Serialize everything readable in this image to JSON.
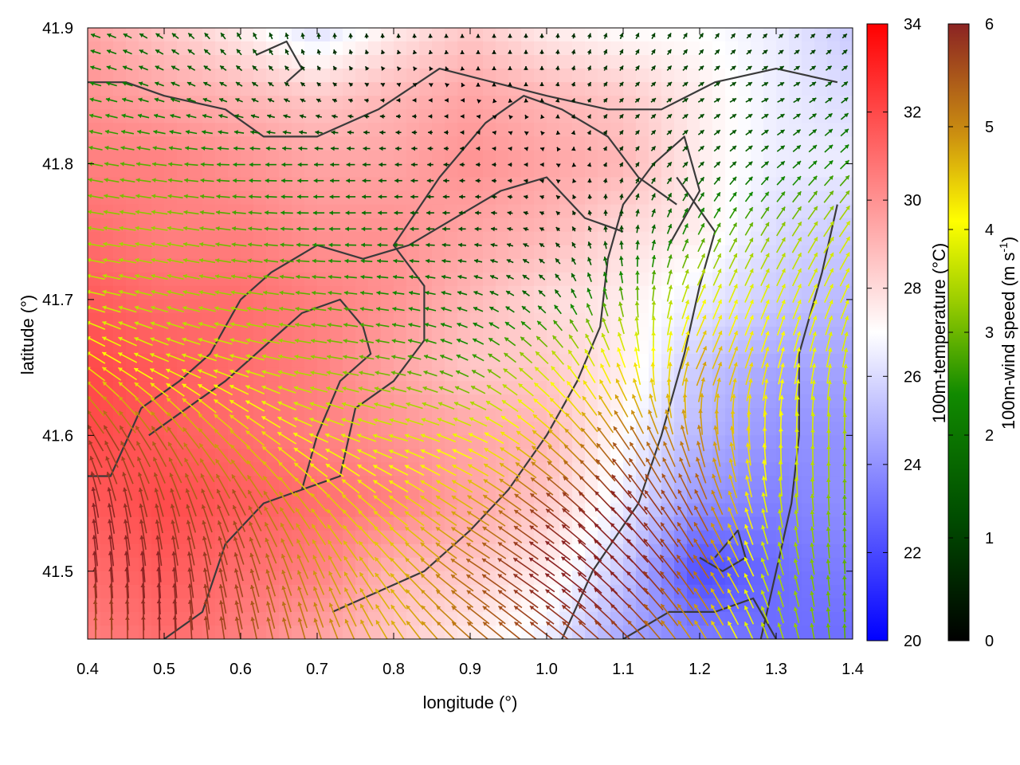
{
  "chart_data": {
    "type": "heatmap",
    "xlabel": "longitude (°)",
    "ylabel": "latitude (°)",
    "xlim": [
      0.4,
      1.4
    ],
    "ylim": [
      41.45,
      41.9
    ],
    "xticks": [
      "0.4",
      "0.5",
      "0.6",
      "0.7",
      "0.8",
      "0.9",
      "1.0",
      "1.1",
      "1.2",
      "1.3",
      "1.4"
    ],
    "yticks": [
      "41.5",
      "41.6",
      "41.7",
      "41.8",
      "41.9"
    ],
    "xtick_values": [
      0.4,
      0.5,
      0.6,
      0.7,
      0.8,
      0.9,
      1.0,
      1.1,
      1.2,
      1.3,
      1.4
    ],
    "ytick_values": [
      41.5,
      41.6,
      41.7,
      41.8,
      41.9
    ],
    "temperature_colorbar": {
      "label": "100m-temperature (°C)",
      "range": [
        20,
        34
      ],
      "ticks": [
        "20",
        "22",
        "24",
        "26",
        "28",
        "30",
        "32",
        "34"
      ],
      "tick_values": [
        20,
        22,
        24,
        26,
        28,
        30,
        32,
        34
      ],
      "colors": [
        "#0000ff",
        "#ffffff",
        "#ff0000"
      ]
    },
    "wind_colorbar": {
      "label": "100m-wind speed (m s",
      "label_sup": "-1",
      "label_end": ")",
      "range": [
        0,
        6
      ],
      "ticks": [
        "0",
        "1",
        "2",
        "3",
        "4",
        "5",
        "6"
      ],
      "tick_values": [
        0,
        1,
        2,
        3,
        4,
        5,
        6
      ],
      "colors": [
        "#000000",
        "#006400",
        "#7fbf00",
        "#ffff00",
        "#c8900a",
        "#8b2323"
      ]
    },
    "temperature_field": {
      "lon": [
        0.4,
        0.5,
        0.6,
        0.7,
        0.8,
        0.9,
        1.0,
        1.1,
        1.2,
        1.3,
        1.4
      ],
      "lat": [
        41.9,
        41.85,
        41.8,
        41.75,
        41.7,
        41.65,
        41.6,
        41.55,
        41.5,
        41.45
      ],
      "values": [
        [
          29.5,
          28.5,
          27.5,
          26.0,
          27.5,
          28.5,
          27.5,
          27.0,
          27.0,
          26.5,
          25.5
        ],
        [
          30.0,
          29.5,
          29.0,
          28.5,
          29.0,
          29.5,
          29.0,
          28.5,
          27.5,
          26.5,
          26.0
        ],
        [
          30.5,
          30.5,
          30.0,
          29.5,
          29.5,
          30.0,
          29.5,
          29.0,
          27.5,
          26.5,
          26.5
        ],
        [
          31.0,
          30.5,
          30.5,
          30.0,
          30.0,
          29.5,
          29.0,
          28.0,
          27.5,
          26.0,
          25.5
        ],
        [
          31.5,
          31.0,
          31.0,
          30.5,
          30.0,
          29.0,
          28.0,
          27.5,
          26.5,
          25.5,
          25.0
        ],
        [
          32.0,
          31.5,
          31.0,
          30.5,
          29.5,
          28.5,
          28.5,
          27.5,
          25.5,
          24.5,
          24.5
        ],
        [
          32.0,
          31.5,
          31.0,
          30.5,
          30.0,
          29.5,
          29.0,
          27.0,
          25.0,
          24.0,
          24.0
        ],
        [
          31.5,
          32.0,
          31.5,
          31.0,
          30.5,
          29.5,
          28.5,
          26.5,
          24.0,
          23.5,
          24.0
        ],
        [
          31.0,
          31.5,
          31.0,
          30.5,
          29.0,
          28.5,
          27.5,
          25.5,
          22.0,
          23.0,
          23.5
        ],
        [
          30.5,
          31.0,
          30.5,
          29.5,
          28.5,
          27.5,
          26.5,
          24.5,
          23.5,
          23.0,
          23.0
        ]
      ]
    },
    "wind_field": {
      "lon": [
        0.4,
        0.5,
        0.6,
        0.7,
        0.8,
        0.9,
        1.0,
        1.1,
        1.2,
        1.3,
        1.4
      ],
      "lat": [
        41.9,
        41.85,
        41.8,
        41.75,
        41.7,
        41.65,
        41.6,
        41.55,
        41.5,
        41.45
      ],
      "u": [
        [
          -1.5,
          -1.0,
          -0.5,
          0.0,
          0.0,
          0.0,
          0.0,
          0.3,
          0.5,
          0.5,
          0.5
        ],
        [
          -2.0,
          -1.5,
          -1.0,
          -0.5,
          -0.3,
          0.0,
          0.0,
          0.5,
          0.8,
          1.0,
          1.0
        ],
        [
          -2.5,
          -2.5,
          -2.0,
          -1.5,
          -1.0,
          -0.5,
          -0.2,
          0.3,
          0.8,
          1.2,
          1.5
        ],
        [
          -3.0,
          -3.0,
          -2.5,
          -2.0,
          -1.5,
          -1.0,
          -0.5,
          0.0,
          1.0,
          1.5,
          2.0
        ],
        [
          -3.5,
          -3.0,
          -3.0,
          -2.5,
          -2.0,
          -1.5,
          -1.0,
          -0.5,
          1.5,
          1.5,
          1.5
        ],
        [
          -3.5,
          -3.5,
          -3.5,
          -3.0,
          -2.5,
          -2.0,
          -2.5,
          -1.5,
          2.0,
          1.0,
          0.5
        ],
        [
          -3.0,
          -3.0,
          -3.5,
          -3.5,
          -3.5,
          -3.5,
          -3.5,
          -3.0,
          -1.0,
          0.0,
          0.0
        ],
        [
          -1.0,
          -1.5,
          -2.5,
          -3.0,
          -3.5,
          -4.0,
          -4.5,
          -4.0,
          -2.5,
          -0.5,
          0.0
        ],
        [
          -0.5,
          -0.5,
          -1.5,
          -2.0,
          -3.0,
          -4.5,
          -5.0,
          -4.5,
          -3.0,
          -1.0,
          0.0
        ],
        [
          0.0,
          0.0,
          -1.0,
          -1.5,
          -2.5,
          -4.0,
          -4.5,
          -4.0,
          -2.5,
          -1.0,
          0.0
        ]
      ],
      "v": [
        [
          0.5,
          0.8,
          1.0,
          0.8,
          0.5,
          0.3,
          0.5,
          0.8,
          0.8,
          0.5,
          0.5
        ],
        [
          0.5,
          0.5,
          0.5,
          0.3,
          0.0,
          0.0,
          0.3,
          0.5,
          0.5,
          0.5,
          0.8
        ],
        [
          0.5,
          0.3,
          0.0,
          0.0,
          0.0,
          0.0,
          0.0,
          0.5,
          0.8,
          1.0,
          1.5
        ],
        [
          0.5,
          0.5,
          0.3,
          0.0,
          0.0,
          0.0,
          0.3,
          1.0,
          2.0,
          2.5,
          3.0
        ],
        [
          0.8,
          0.8,
          0.5,
          0.3,
          0.3,
          0.5,
          1.0,
          2.5,
          3.5,
          3.5,
          3.5
        ],
        [
          2.5,
          1.5,
          1.0,
          0.5,
          0.5,
          1.0,
          2.5,
          4.0,
          4.5,
          4.0,
          3.5
        ],
        [
          5.0,
          4.5,
          3.0,
          1.5,
          1.0,
          1.5,
          3.0,
          4.5,
          5.0,
          4.0,
          3.0
        ],
        [
          6.0,
          5.5,
          5.0,
          3.5,
          2.5,
          2.5,
          3.5,
          4.5,
          5.0,
          3.5,
          2.5
        ],
        [
          6.0,
          6.0,
          5.5,
          4.5,
          3.5,
          3.0,
          3.5,
          4.5,
          4.5,
          3.0,
          2.5
        ],
        [
          5.5,
          6.0,
          5.5,
          5.0,
          4.0,
          3.5,
          3.5,
          4.0,
          4.0,
          3.0,
          2.5
        ]
      ]
    },
    "contours": [
      [
        [
          0.4,
          41.57
        ],
        [
          0.43,
          41.57
        ],
        [
          0.47,
          41.62
        ],
        [
          0.52,
          41.64
        ],
        [
          0.56,
          41.66
        ],
        [
          0.6,
          41.7
        ],
        [
          0.64,
          41.72
        ],
        [
          0.7,
          41.74
        ],
        [
          0.76,
          41.73
        ],
        [
          0.82,
          41.74
        ],
        [
          0.88,
          41.76
        ],
        [
          0.94,
          41.78
        ],
        [
          1.0,
          41.79
        ],
        [
          1.05,
          41.76
        ],
        [
          1.1,
          41.75
        ]
      ],
      [
        [
          0.5,
          41.45
        ],
        [
          0.55,
          41.47
        ],
        [
          0.58,
          41.52
        ],
        [
          0.63,
          41.55
        ],
        [
          0.68,
          41.56
        ],
        [
          0.73,
          41.57
        ],
        [
          0.75,
          41.62
        ],
        [
          0.8,
          41.64
        ],
        [
          0.84,
          41.67
        ],
        [
          0.84,
          41.71
        ],
        [
          0.8,
          41.74
        ],
        [
          0.86,
          41.79
        ],
        [
          0.92,
          41.83
        ],
        [
          0.97,
          41.85
        ],
        [
          1.02,
          41.84
        ],
        [
          1.08,
          41.82
        ],
        [
          1.12,
          41.79
        ],
        [
          1.17,
          41.77
        ]
      ],
      [
        [
          0.72,
          41.47
        ],
        [
          0.76,
          41.48
        ],
        [
          0.84,
          41.5
        ],
        [
          0.9,
          41.53
        ],
        [
          0.95,
          41.56
        ],
        [
          1.0,
          41.6
        ],
        [
          1.04,
          41.64
        ],
        [
          1.07,
          41.68
        ],
        [
          1.08,
          41.73
        ],
        [
          1.1,
          41.77
        ],
        [
          1.14,
          41.8
        ],
        [
          1.18,
          41.82
        ],
        [
          1.2,
          41.78
        ],
        [
          1.16,
          41.74
        ]
      ],
      [
        [
          1.02,
          41.45
        ],
        [
          1.06,
          41.5
        ],
        [
          1.12,
          41.55
        ],
        [
          1.15,
          41.6
        ],
        [
          1.18,
          41.66
        ],
        [
          1.2,
          41.71
        ],
        [
          1.22,
          41.75
        ],
        [
          1.17,
          41.79
        ]
      ],
      [
        [
          0.4,
          41.86
        ],
        [
          0.45,
          41.86
        ],
        [
          0.5,
          41.85
        ],
        [
          0.58,
          41.84
        ],
        [
          0.63,
          41.82
        ],
        [
          0.7,
          41.82
        ],
        [
          0.78,
          41.84
        ],
        [
          0.86,
          41.87
        ],
        [
          0.93,
          41.86
        ],
        [
          1.0,
          41.85
        ],
        [
          1.08,
          41.84
        ],
        [
          1.15,
          41.84
        ],
        [
          1.22,
          41.86
        ],
        [
          1.3,
          41.87
        ],
        [
          1.38,
          41.86
        ]
      ],
      [
        [
          1.1,
          41.45
        ],
        [
          1.16,
          41.47
        ],
        [
          1.22,
          41.47
        ],
        [
          1.27,
          41.48
        ],
        [
          1.3,
          41.45
        ]
      ],
      [
        [
          1.2,
          41.51
        ],
        [
          1.23,
          41.5
        ],
        [
          1.26,
          41.51
        ],
        [
          1.25,
          41.53
        ],
        [
          1.22,
          41.51
        ]
      ],
      [
        [
          1.28,
          41.45
        ],
        [
          1.3,
          41.5
        ],
        [
          1.32,
          41.55
        ],
        [
          1.33,
          41.6
        ],
        [
          1.33,
          41.66
        ],
        [
          1.36,
          41.72
        ],
        [
          1.38,
          41.77
        ]
      ],
      [
        [
          0.48,
          41.6
        ],
        [
          0.53,
          41.62
        ],
        [
          0.58,
          41.64
        ],
        [
          0.64,
          41.67
        ],
        [
          0.68,
          41.69
        ],
        [
          0.73,
          41.7
        ],
        [
          0.76,
          41.68
        ],
        [
          0.77,
          41.66
        ],
        [
          0.73,
          41.64
        ],
        [
          0.7,
          41.6
        ],
        [
          0.68,
          41.56
        ]
      ],
      [
        [
          0.62,
          41.88
        ],
        [
          0.66,
          41.89
        ],
        [
          0.68,
          41.87
        ],
        [
          0.66,
          41.86
        ]
      ]
    ]
  }
}
